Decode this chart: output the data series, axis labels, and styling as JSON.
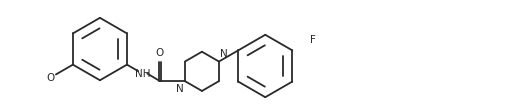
{
  "background_color": "#ffffff",
  "line_color": "#2a2a2a",
  "line_width": 1.3,
  "text_color": "#2a2a2a",
  "label_fontsize": 7.5,
  "figsize": [
    5.28,
    1.07
  ],
  "dpi": 100,
  "xlim": [
    0,
    52.8
  ],
  "ylim": [
    -5.5,
    6.5
  ]
}
